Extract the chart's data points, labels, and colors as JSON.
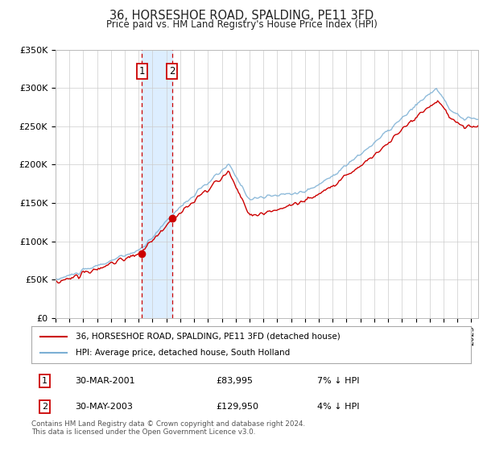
{
  "title": "36, HORSESHOE ROAD, SPALDING, PE11 3FD",
  "subtitle": "Price paid vs. HM Land Registry's House Price Index (HPI)",
  "legend_line1": "36, HORSESHOE ROAD, SPALDING, PE11 3FD (detached house)",
  "legend_line2": "HPI: Average price, detached house, South Holland",
  "sale1_date": "30-MAR-2001",
  "sale1_price": 83995,
  "sale1_label": "1",
  "sale1_note": "7% ↓ HPI",
  "sale2_date": "30-MAY-2003",
  "sale2_price": 129950,
  "sale2_label": "2",
  "sale2_note": "4% ↓ HPI",
  "footnote": "Contains HM Land Registry data © Crown copyright and database right 2024.\nThis data is licensed under the Open Government Licence v3.0.",
  "hpi_color": "#7BAFD4",
  "price_color": "#cc0000",
  "shade_color": "#ddeeff",
  "grid_color": "#cccccc",
  "background_color": "#ffffff",
  "ylim": [
    0,
    350000
  ],
  "ytick_vals": [
    0,
    50000,
    100000,
    150000,
    200000,
    250000,
    300000,
    350000
  ],
  "ytick_labels": [
    "£0",
    "£50K",
    "£100K",
    "£150K",
    "£200K",
    "£250K",
    "£300K",
    "£350K"
  ],
  "xlim": [
    1995,
    2025.5
  ],
  "sale1_x": 2001.24,
  "sale2_x": 2003.41
}
